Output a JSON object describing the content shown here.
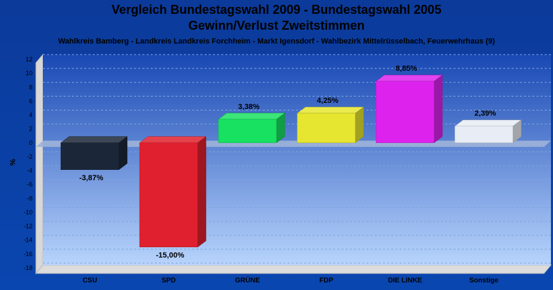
{
  "chart_data": {
    "type": "bar",
    "title": "Vergleich Bundestagswahl 2009 - Bundestagswahl 2005",
    "title2": "Gewinn/Verlust Zweitstimmen",
    "subtitle": "Wahlkreis Bamberg - Landkreis Landkreis Forchheim - Markt Igensdorf - Wahlbezirk Mittelrüsselbach, Feuerwehrhaus (9)",
    "ylabel": "%",
    "ylim": [
      -18,
      12
    ],
    "yticks": [
      12,
      10,
      8,
      6,
      4,
      2,
      0,
      -2,
      -4,
      -6,
      -8,
      -10,
      -12,
      -14,
      -16,
      -18
    ],
    "grid": true,
    "categories": [
      "CSU",
      "SPD",
      "GRÜNE",
      "FDP",
      "DIE LINKE",
      "Sonstige"
    ],
    "values": [
      -3.87,
      -15.0,
      3.38,
      4.25,
      8.85,
      2.39
    ],
    "value_labels": [
      "-3,87%",
      "-15,00%",
      "3,38%",
      "4,25%",
      "8,85%",
      "2,39%"
    ],
    "colors": [
      "#1b2638",
      "#e0202e",
      "#18e060",
      "#e6e630",
      "#dd22ee",
      "#e8ecf4"
    ]
  }
}
